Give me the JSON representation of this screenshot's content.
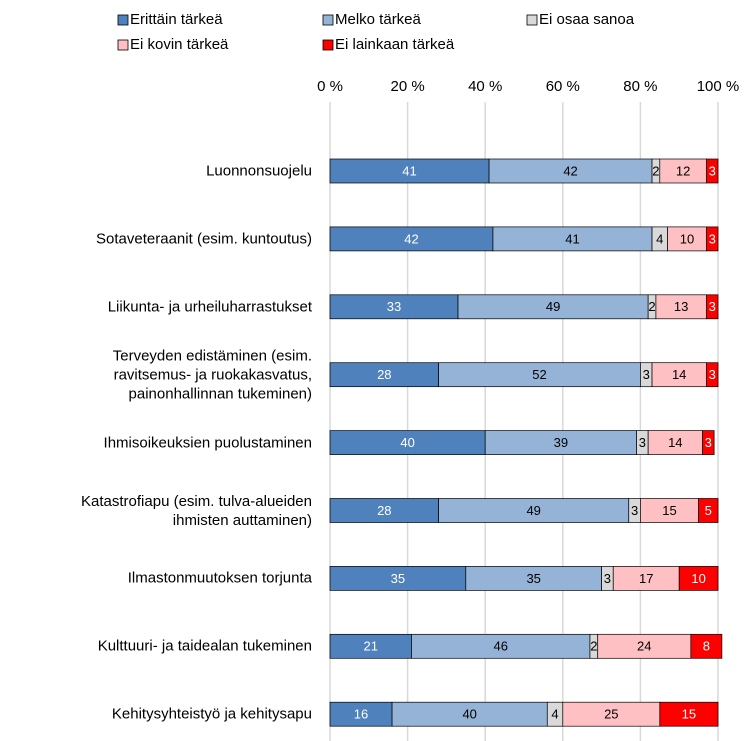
{
  "chart_data": {
    "type": "stacked_bar_horizontal",
    "categories": [
      "Luonnonsuojelu",
      "Sotaveteraanit (esim. kuntoutus)",
      "Liikunta- ja urheiluharrastukset",
      "Terveyden edistäminen (esim.\nravitsemus- ja ruokakasvatus,\npainonhallinnan tukeminen)",
      "Ihmisoikeuksien puolustaminen",
      "Katastrofiapu (esim. tulva-alueiden\nihmisten auttaminen)",
      "Ilmastonmuutoksen torjunta",
      "Kulttuuri- ja taidealan tukeminen",
      "Kehitysyhteistyö ja kehitysapu"
    ],
    "series": [
      {
        "name": "Erittäin tärkeä",
        "color": "#4f81bd",
        "values": [
          41,
          42,
          33,
          28,
          40,
          28,
          35,
          21,
          16
        ]
      },
      {
        "name": "Melko tärkeä",
        "color": "#95b3d7",
        "values": [
          42,
          41,
          49,
          52,
          39,
          49,
          35,
          46,
          40
        ]
      },
      {
        "name": "Ei osaa sanoa",
        "color": "#d9d9d9",
        "values": [
          2,
          4,
          2,
          3,
          3,
          3,
          3,
          2,
          4
        ]
      },
      {
        "name": "Ei kovin tärkeä",
        "color": "#ffc0c4",
        "values": [
          12,
          10,
          13,
          14,
          14,
          15,
          17,
          24,
          25
        ]
      },
      {
        "name": "Ei lainkaan tärkeä",
        "color": "#ff0000",
        "values": [
          3,
          3,
          3,
          3,
          3,
          5,
          10,
          8,
          15
        ]
      }
    ],
    "xlim": [
      0,
      100
    ],
    "xticks": [
      {
        "value": 0,
        "label": "0 %"
      },
      {
        "value": 20,
        "label": "20 %"
      },
      {
        "value": 40,
        "label": "40 %"
      },
      {
        "value": 60,
        "label": "60 %"
      },
      {
        "value": 80,
        "label": "80 %"
      },
      {
        "value": 100,
        "label": "100 %"
      }
    ],
    "grid": true,
    "legend": "top"
  }
}
